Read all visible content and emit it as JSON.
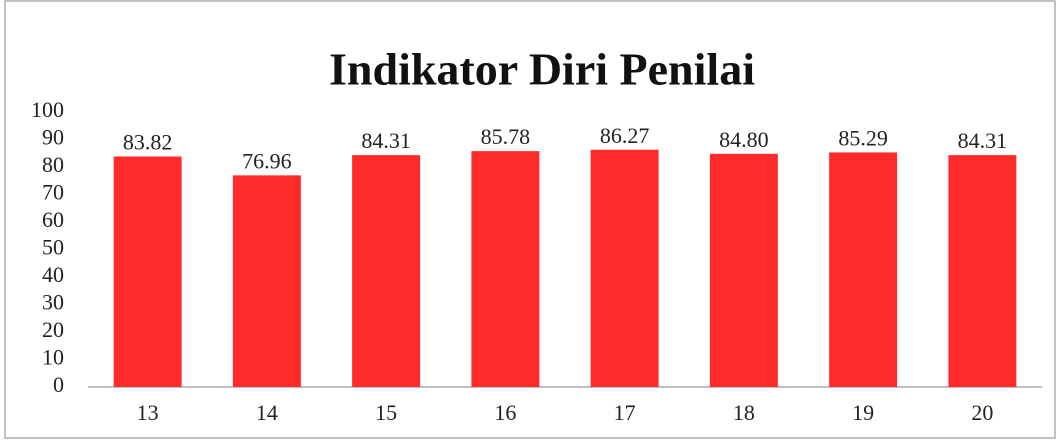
{
  "chart_data": {
    "type": "bar",
    "title": "Indikator Diri Penilai",
    "categories": [
      "13",
      "14",
      "15",
      "16",
      "17",
      "18",
      "19",
      "20"
    ],
    "values": [
      83.82,
      76.96,
      84.31,
      85.78,
      86.27,
      84.8,
      85.29,
      84.31
    ],
    "value_labels": [
      "83.82",
      "76.96",
      "84.31",
      "85.78",
      "86.27",
      "84.80",
      "85.29",
      "84.31"
    ],
    "color": "#ff2a2a",
    "ylim": [
      0,
      100
    ],
    "yticks": [
      0,
      10,
      20,
      30,
      40,
      50,
      60,
      70,
      80,
      90,
      100
    ],
    "grid": false
  }
}
